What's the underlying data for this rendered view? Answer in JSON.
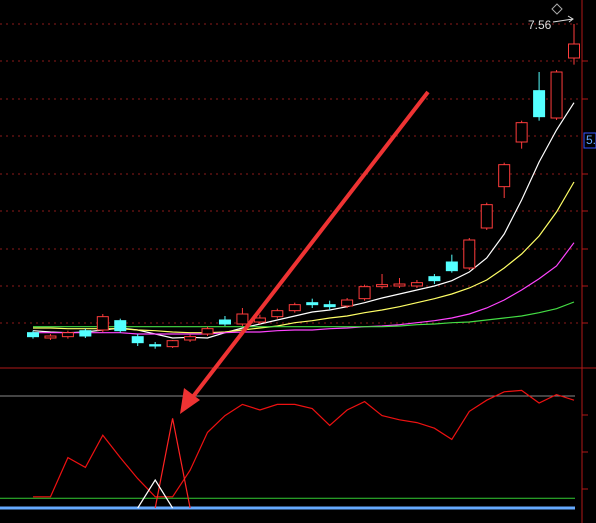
{
  "chart_data": {
    "type": "candlestick",
    "annotation": "7.56",
    "axis_label": "5.",
    "ylim": [
      2.4,
      7.92
    ],
    "up_color": "#ff3c3c",
    "down_color": "#54ffff",
    "open": [
      2.93,
      2.85,
      2.87,
      2.96,
      2.97,
      3.11,
      2.87,
      2.75,
      2.72,
      2.82,
      2.91,
      3.12,
      3.06,
      3.09,
      3.17,
      3.26,
      3.38,
      3.35,
      3.33,
      3.44,
      3.62,
      3.63,
      3.63,
      3.77,
      3.99,
      3.9,
      4.5,
      5.12,
      5.79,
      6.56,
      6.15,
      7.05
    ],
    "high": [
      2.96,
      2.91,
      2.96,
      2.99,
      3.21,
      3.14,
      2.91,
      2.79,
      2.82,
      2.9,
      3.02,
      3.18,
      3.3,
      3.2,
      3.29,
      3.38,
      3.44,
      3.41,
      3.45,
      3.65,
      3.81,
      3.75,
      3.72,
      3.81,
      4.1,
      4.35,
      4.88,
      5.48,
      6.11,
      6.84,
      6.87,
      7.56
    ],
    "low": [
      2.84,
      2.82,
      2.84,
      2.85,
      2.94,
      2.93,
      2.73,
      2.69,
      2.7,
      2.79,
      2.88,
      3.03,
      3.03,
      3.06,
      3.14,
      3.23,
      3.3,
      3.27,
      3.3,
      3.41,
      3.59,
      3.6,
      3.6,
      3.66,
      3.83,
      3.87,
      4.47,
      4.95,
      5.69,
      6.11,
      6.12,
      6.95
    ],
    "close": [
      2.87,
      2.88,
      2.93,
      2.88,
      3.17,
      2.96,
      2.78,
      2.73,
      2.81,
      2.87,
      2.99,
      3.06,
      3.21,
      3.15,
      3.26,
      3.35,
      3.35,
      3.32,
      3.42,
      3.62,
      3.65,
      3.66,
      3.68,
      3.71,
      3.86,
      4.32,
      4.85,
      5.45,
      6.08,
      6.17,
      6.84,
      7.26
    ],
    "series": [
      {
        "color": "#ffffff",
        "values": [
          2.96,
          2.94,
          2.93,
          2.94,
          2.97,
          3.0,
          2.97,
          2.91,
          2.85,
          2.86,
          2.85,
          2.93,
          3.0,
          3.06,
          3.12,
          3.18,
          3.24,
          3.27,
          3.32,
          3.38,
          3.45,
          3.51,
          3.57,
          3.63,
          3.71,
          3.84,
          4.05,
          4.41,
          4.92,
          5.49,
          5.97,
          6.38
        ]
      },
      {
        "color": "#ffff66",
        "values": [
          3.0,
          3.0,
          2.99,
          2.99,
          2.99,
          2.99,
          2.97,
          2.96,
          2.94,
          2.93,
          2.93,
          2.94,
          2.97,
          3.0,
          3.03,
          3.08,
          3.11,
          3.15,
          3.18,
          3.23,
          3.27,
          3.32,
          3.38,
          3.44,
          3.51,
          3.6,
          3.72,
          3.9,
          4.11,
          4.38,
          4.74,
          5.19
        ]
      },
      {
        "color": "#ff44ff",
        "values": [
          2.93,
          2.93,
          2.93,
          2.93,
          2.93,
          2.93,
          2.91,
          2.91,
          2.91,
          2.91,
          2.91,
          2.93,
          2.94,
          2.94,
          2.96,
          2.97,
          2.97,
          2.99,
          3.0,
          3.02,
          3.03,
          3.05,
          3.08,
          3.11,
          3.15,
          3.21,
          3.3,
          3.42,
          3.57,
          3.74,
          3.93,
          4.28
        ]
      },
      {
        "color": "#44dd44",
        "values": [
          3.02,
          3.02,
          3.02,
          3.02,
          3.02,
          3.02,
          3.02,
          3.02,
          3.02,
          3.02,
          3.02,
          3.02,
          3.02,
          3.02,
          3.02,
          3.02,
          3.02,
          3.02,
          3.02,
          3.02,
          3.02,
          3.03,
          3.05,
          3.06,
          3.08,
          3.09,
          3.12,
          3.15,
          3.18,
          3.23,
          3.29,
          3.39
        ]
      }
    ],
    "indicator": {
      "ylim": [
        0,
        100
      ],
      "levels": [
        {
          "value": 80,
          "color": "#888888"
        },
        {
          "value": 7,
          "color": "#33cc33"
        },
        {
          "value": 0,
          "color": "#66aaff"
        }
      ],
      "series": [
        {
          "color": "#ee1111",
          "values": [
            8,
            8,
            36,
            29,
            52,
            36,
            21,
            8,
            8,
            27,
            54,
            66,
            74,
            70,
            74,
            74,
            71,
            59,
            70,
            76,
            66,
            63,
            61,
            57,
            49,
            69,
            77,
            83,
            84,
            75,
            81,
            77
          ]
        },
        {
          "color": "#ff2222",
          "values": [
            null,
            null,
            null,
            null,
            null,
            null,
            null,
            0,
            64,
            0,
            null,
            null,
            null,
            null,
            null,
            null,
            null,
            null,
            null,
            null,
            null,
            null,
            null,
            null,
            null,
            null,
            null,
            null,
            null,
            null,
            null,
            null
          ]
        },
        {
          "color": "#ffffff",
          "values": [
            null,
            null,
            null,
            null,
            null,
            null,
            0,
            20,
            0,
            null,
            null,
            null,
            null,
            null,
            null,
            null,
            null,
            null,
            null,
            null,
            null,
            null,
            null,
            null,
            null,
            null,
            null,
            null,
            null,
            null,
            null,
            null
          ]
        }
      ]
    }
  }
}
